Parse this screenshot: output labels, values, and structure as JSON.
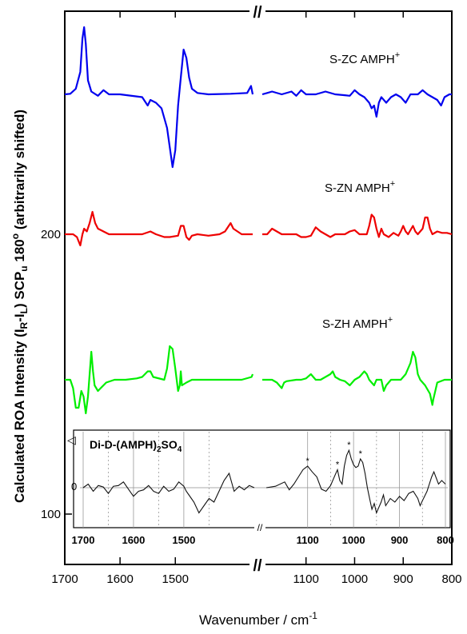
{
  "chart_data": {
    "type": "line",
    "xlabel": "Wavenumber / cm",
    "xlabel_sup": "-1",
    "ylabel_parts": {
      "a": "Calculated ROA Intensity (I",
      "sub1": "R",
      "b": "-I",
      "sub2": "L",
      "c": ") SCP",
      "sub3": "u",
      "d": " 180",
      "sup": "o",
      "e": " (arbitrarily shifted)"
    },
    "x_reversed": true,
    "x_segments": [
      [
        1700,
        1360
      ],
      [
        1190,
        800
      ]
    ],
    "x_ticks": [
      1700,
      1600,
      1500,
      1100,
      1000,
      900,
      800
    ],
    "y_ticks": [
      100,
      200
    ],
    "ylim": [
      60,
      275
    ],
    "axis_break": "//",
    "series": [
      {
        "name_main": "S-ZC  AMPH",
        "name_sup": "+",
        "color": "#0000ee",
        "baseline": 250,
        "points": [
          [
            1700,
            0
          ],
          [
            1690,
            0.2
          ],
          [
            1680,
            2
          ],
          [
            1672,
            8
          ],
          [
            1668,
            20
          ],
          [
            1665,
            24
          ],
          [
            1662,
            18
          ],
          [
            1658,
            5
          ],
          [
            1652,
            1
          ],
          [
            1640,
            -0.5
          ],
          [
            1630,
            1.5
          ],
          [
            1620,
            0
          ],
          [
            1600,
            0
          ],
          [
            1560,
            -1
          ],
          [
            1550,
            -4
          ],
          [
            1545,
            -2
          ],
          [
            1535,
            -3
          ],
          [
            1525,
            -5
          ],
          [
            1515,
            -12
          ],
          [
            1505,
            -26
          ],
          [
            1500,
            -20
          ],
          [
            1495,
            -4
          ],
          [
            1490,
            6
          ],
          [
            1485,
            16
          ],
          [
            1480,
            13
          ],
          [
            1475,
            6
          ],
          [
            1470,
            2
          ],
          [
            1460,
            0.5
          ],
          [
            1440,
            0
          ],
          [
            1400,
            0.2
          ],
          [
            1370,
            0.5
          ],
          [
            1363,
            3
          ],
          [
            1360,
            0
          ],
          [
            1190,
            0
          ],
          [
            1180,
            0.5
          ],
          [
            1170,
            1
          ],
          [
            1150,
            0
          ],
          [
            1130,
            1
          ],
          [
            1120,
            -0.5
          ],
          [
            1110,
            1.5
          ],
          [
            1100,
            0
          ],
          [
            1080,
            0
          ],
          [
            1060,
            1
          ],
          [
            1040,
            0
          ],
          [
            1020,
            -0.3
          ],
          [
            1010,
            -0.5
          ],
          [
            1000,
            1.5
          ],
          [
            990,
            0
          ],
          [
            980,
            -1
          ],
          [
            970,
            -3
          ],
          [
            965,
            -5
          ],
          [
            960,
            -4
          ],
          [
            955,
            -8
          ],
          [
            950,
            -3
          ],
          [
            945,
            -1
          ],
          [
            935,
            -3
          ],
          [
            925,
            -1
          ],
          [
            915,
            0
          ],
          [
            905,
            -1
          ],
          [
            895,
            -3
          ],
          [
            885,
            0
          ],
          [
            870,
            0
          ],
          [
            860,
            1.5
          ],
          [
            850,
            0
          ],
          [
            840,
            -1
          ],
          [
            830,
            -2
          ],
          [
            822,
            -4
          ],
          [
            815,
            -1
          ],
          [
            805,
            0
          ],
          [
            800,
            0
          ]
        ]
      },
      {
        "name_main": "S-ZN  AMPH",
        "name_sup": "+",
        "color": "#ee0000",
        "baseline": 200,
        "points": [
          [
            1700,
            0
          ],
          [
            1685,
            0
          ],
          [
            1678,
            -1
          ],
          [
            1672,
            -4
          ],
          [
            1668,
            0
          ],
          [
            1665,
            2
          ],
          [
            1660,
            1
          ],
          [
            1655,
            4
          ],
          [
            1650,
            8
          ],
          [
            1645,
            4
          ],
          [
            1640,
            2
          ],
          [
            1630,
            1
          ],
          [
            1620,
            0
          ],
          [
            1600,
            0
          ],
          [
            1560,
            0
          ],
          [
            1545,
            1
          ],
          [
            1535,
            0
          ],
          [
            1520,
            -1
          ],
          [
            1510,
            -1
          ],
          [
            1495,
            -0.5
          ],
          [
            1490,
            3
          ],
          [
            1485,
            3
          ],
          [
            1480,
            -1
          ],
          [
            1475,
            -2
          ],
          [
            1470,
            -0.5
          ],
          [
            1460,
            0
          ],
          [
            1440,
            -0.5
          ],
          [
            1420,
            0
          ],
          [
            1410,
            1
          ],
          [
            1400,
            4
          ],
          [
            1395,
            2
          ],
          [
            1380,
            0
          ],
          [
            1360,
            0
          ],
          [
            1190,
            0
          ],
          [
            1180,
            0
          ],
          [
            1170,
            2
          ],
          [
            1160,
            1
          ],
          [
            1150,
            0
          ],
          [
            1130,
            0
          ],
          [
            1120,
            0
          ],
          [
            1110,
            -1
          ],
          [
            1100,
            -1
          ],
          [
            1090,
            -0.5
          ],
          [
            1080,
            2.5
          ],
          [
            1070,
            1
          ],
          [
            1060,
            0
          ],
          [
            1050,
            -1
          ],
          [
            1040,
            0
          ],
          [
            1030,
            0
          ],
          [
            1020,
            0
          ],
          [
            1010,
            1
          ],
          [
            1000,
            1.5
          ],
          [
            990,
            0
          ],
          [
            975,
            0
          ],
          [
            970,
            3
          ],
          [
            965,
            7
          ],
          [
            960,
            6
          ],
          [
            955,
            2
          ],
          [
            950,
            -1
          ],
          [
            945,
            2
          ],
          [
            940,
            0
          ],
          [
            930,
            -1
          ],
          [
            920,
            0.5
          ],
          [
            910,
            -0.5
          ],
          [
            905,
            1
          ],
          [
            900,
            3
          ],
          [
            895,
            1
          ],
          [
            890,
            0
          ],
          [
            880,
            3
          ],
          [
            875,
            1
          ],
          [
            870,
            0
          ],
          [
            865,
            1
          ],
          [
            860,
            2
          ],
          [
            855,
            6
          ],
          [
            850,
            6
          ],
          [
            845,
            2
          ],
          [
            840,
            0
          ],
          [
            830,
            1
          ],
          [
            820,
            0.5
          ],
          [
            810,
            0.5
          ],
          [
            800,
            0
          ]
        ]
      },
      {
        "name_main": "S-ZH  AMPH",
        "name_sup": "+",
        "color": "#00ee00",
        "baseline": 148,
        "points": [
          [
            1700,
            0
          ],
          [
            1690,
            0
          ],
          [
            1685,
            -3
          ],
          [
            1680,
            -10
          ],
          [
            1675,
            -10
          ],
          [
            1670,
            -4
          ],
          [
            1666,
            -6
          ],
          [
            1662,
            -12
          ],
          [
            1658,
            -6
          ],
          [
            1655,
            2
          ],
          [
            1652,
            10
          ],
          [
            1649,
            3
          ],
          [
            1646,
            -2
          ],
          [
            1640,
            -4
          ],
          [
            1635,
            -3
          ],
          [
            1625,
            -1
          ],
          [
            1610,
            0
          ],
          [
            1590,
            0
          ],
          [
            1570,
            0.5
          ],
          [
            1560,
            1
          ],
          [
            1550,
            3
          ],
          [
            1545,
            3
          ],
          [
            1540,
            1
          ],
          [
            1520,
            0
          ],
          [
            1515,
            4
          ],
          [
            1510,
            12
          ],
          [
            1505,
            11
          ],
          [
            1500,
            4
          ],
          [
            1495,
            -4
          ],
          [
            1492,
            -2
          ],
          [
            1490,
            3
          ],
          [
            1488,
            -2
          ],
          [
            1480,
            -1
          ],
          [
            1470,
            0
          ],
          [
            1450,
            0
          ],
          [
            1420,
            0
          ],
          [
            1400,
            0
          ],
          [
            1380,
            0
          ],
          [
            1362,
            1
          ],
          [
            1360,
            2
          ],
          [
            1190,
            0
          ],
          [
            1180,
            0
          ],
          [
            1170,
            0
          ],
          [
            1160,
            -1
          ],
          [
            1150,
            -3
          ],
          [
            1145,
            -1
          ],
          [
            1140,
            -0.5
          ],
          [
            1120,
            0
          ],
          [
            1110,
            0
          ],
          [
            1100,
            0.5
          ],
          [
            1090,
            2
          ],
          [
            1080,
            0
          ],
          [
            1070,
            0
          ],
          [
            1060,
            1
          ],
          [
            1050,
            2
          ],
          [
            1045,
            3
          ],
          [
            1040,
            1
          ],
          [
            1030,
            0
          ],
          [
            1020,
            -0.5
          ],
          [
            1010,
            -2
          ],
          [
            1000,
            0
          ],
          [
            990,
            1
          ],
          [
            980,
            3
          ],
          [
            975,
            2
          ],
          [
            970,
            0
          ],
          [
            965,
            -1
          ],
          [
            960,
            -2
          ],
          [
            955,
            0
          ],
          [
            945,
            0
          ],
          [
            940,
            -4
          ],
          [
            935,
            -2
          ],
          [
            925,
            0
          ],
          [
            915,
            0
          ],
          [
            905,
            0
          ],
          [
            895,
            2
          ],
          [
            885,
            6
          ],
          [
            880,
            10
          ],
          [
            875,
            8
          ],
          [
            870,
            2
          ],
          [
            865,
            0
          ],
          [
            855,
            -2
          ],
          [
            845,
            -5
          ],
          [
            840,
            -9
          ],
          [
            838,
            -7
          ],
          [
            830,
            -1
          ],
          [
            815,
            0
          ],
          [
            800,
            0
          ]
        ]
      }
    ],
    "inset": {
      "title_main": "Di-D-(AMPH)",
      "title_sub": "2",
      "title_main2": "SO",
      "title_sub2": "4",
      "zero_label": "0",
      "triangle_glyph": "◁",
      "axis_break": "//",
      "x_ticks": [
        1700,
        1600,
        1500,
        1100,
        1000,
        900,
        800
      ],
      "star_glyph": "*",
      "star_positions": [
        1100,
        1035,
        1010,
        985
      ],
      "points": [
        [
          1700,
          0
        ],
        [
          1690,
          5
        ],
        [
          1680,
          -5
        ],
        [
          1670,
          3
        ],
        [
          1660,
          1
        ],
        [
          1650,
          -8
        ],
        [
          1640,
          2
        ],
        [
          1630,
          3
        ],
        [
          1620,
          8
        ],
        [
          1610,
          -2
        ],
        [
          1600,
          -12
        ],
        [
          1590,
          -5
        ],
        [
          1580,
          -3
        ],
        [
          1570,
          3
        ],
        [
          1560,
          -5
        ],
        [
          1550,
          -8
        ],
        [
          1540,
          2
        ],
        [
          1530,
          -5
        ],
        [
          1520,
          -2
        ],
        [
          1510,
          8
        ],
        [
          1500,
          2
        ],
        [
          1495,
          -5
        ],
        [
          1490,
          -10
        ],
        [
          1480,
          -20
        ],
        [
          1470,
          -35
        ],
        [
          1460,
          -25
        ],
        [
          1450,
          -15
        ],
        [
          1440,
          -20
        ],
        [
          1430,
          -5
        ],
        [
          1420,
          10
        ],
        [
          1410,
          20
        ],
        [
          1400,
          -5
        ],
        [
          1390,
          2
        ],
        [
          1380,
          -3
        ],
        [
          1370,
          3
        ],
        [
          1360,
          0
        ],
        [
          1190,
          0
        ],
        [
          1170,
          2
        ],
        [
          1150,
          8
        ],
        [
          1140,
          -3
        ],
        [
          1130,
          5
        ],
        [
          1120,
          15
        ],
        [
          1110,
          25
        ],
        [
          1100,
          30
        ],
        [
          1090,
          22
        ],
        [
          1080,
          15
        ],
        [
          1070,
          -2
        ],
        [
          1060,
          -5
        ],
        [
          1050,
          3
        ],
        [
          1040,
          18
        ],
        [
          1035,
          25
        ],
        [
          1030,
          10
        ],
        [
          1025,
          5
        ],
        [
          1020,
          30
        ],
        [
          1015,
          45
        ],
        [
          1010,
          52
        ],
        [
          1005,
          40
        ],
        [
          1000,
          32
        ],
        [
          995,
          28
        ],
        [
          990,
          30
        ],
        [
          985,
          40
        ],
        [
          980,
          35
        ],
        [
          975,
          20
        ],
        [
          970,
          0
        ],
        [
          965,
          -15
        ],
        [
          960,
          -30
        ],
        [
          955,
          -22
        ],
        [
          950,
          -35
        ],
        [
          940,
          -20
        ],
        [
          935,
          -10
        ],
        [
          930,
          -25
        ],
        [
          920,
          -15
        ],
        [
          910,
          -20
        ],
        [
          900,
          -12
        ],
        [
          890,
          -18
        ],
        [
          880,
          -8
        ],
        [
          870,
          -5
        ],
        [
          860,
          -15
        ],
        [
          855,
          -25
        ],
        [
          850,
          -18
        ],
        [
          840,
          -5
        ],
        [
          830,
          15
        ],
        [
          825,
          22
        ],
        [
          815,
          5
        ],
        [
          808,
          10
        ],
        [
          800,
          5
        ]
      ]
    }
  }
}
